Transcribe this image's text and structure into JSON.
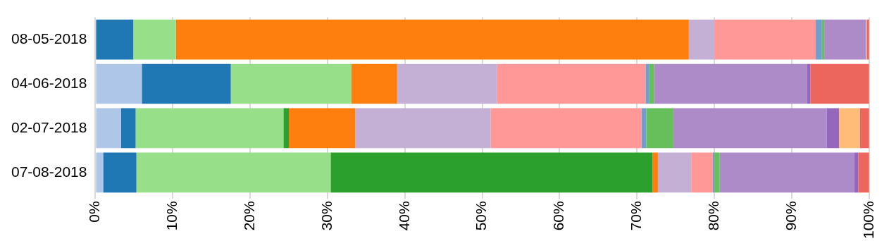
{
  "chart_data": {
    "type": "bar",
    "orientation": "horizontal",
    "stacked": true,
    "grid": "x",
    "legend": false,
    "categories": [
      "08-05-2018",
      "04-06-2018",
      "02-07-2018",
      "07-08-2018"
    ],
    "xlim": [
      0,
      100
    ],
    "xticks": [
      {
        "value": 0,
        "label": "0%"
      },
      {
        "value": 10,
        "label": "10%"
      },
      {
        "value": 20,
        "label": "20%"
      },
      {
        "value": 30,
        "label": "30%"
      },
      {
        "value": 40,
        "label": "40%"
      },
      {
        "value": 50,
        "label": "50%"
      },
      {
        "value": 60,
        "label": "60%"
      },
      {
        "value": 70,
        "label": "70%"
      },
      {
        "value": 80,
        "label": "80%"
      },
      {
        "value": 90,
        "label": "90%"
      },
      {
        "value": 100,
        "label": "100%"
      }
    ],
    "series": [
      {
        "color": "#aec7e8",
        "values": [
          0,
          6.0,
          3.3,
          1.0
        ]
      },
      {
        "color": "#1f77b4",
        "values": [
          4.9,
          11.5,
          1.9,
          4.3
        ]
      },
      {
        "color": "#98df8a",
        "values": [
          5.5,
          15.6,
          19.1,
          25.1
        ]
      },
      {
        "color": "#2ca02c",
        "values": [
          0,
          0,
          0.7,
          41.6
        ]
      },
      {
        "color": "#ff7f0e",
        "values": [
          66.3,
          5.9,
          8.6,
          0.7
        ]
      },
      {
        "color": "#c5b0d5",
        "values": [
          3.3,
          12.9,
          17.5,
          4.3
        ]
      },
      {
        "color": "#ff9896",
        "values": [
          13.1,
          19.2,
          19.5,
          2.8
        ]
      },
      {
        "color": "#729ece",
        "values": [
          0.8,
          0.5,
          0.6,
          0.2
        ]
      },
      {
        "color": "#67bf5c",
        "values": [
          0.3,
          0.6,
          3.5,
          0.7
        ]
      },
      {
        "color": "#ad8bc9",
        "values": [
          5.3,
          19.8,
          19.8,
          17.4
        ]
      },
      {
        "color": "#9467bd",
        "values": [
          0.1,
          0.4,
          1.6,
          0.5
        ]
      },
      {
        "color": "#ffbb78",
        "values": [
          0.1,
          0,
          2.7,
          0
        ]
      },
      {
        "color": "#ed665d",
        "values": [
          0.3,
          7.6,
          1.2,
          1.4
        ]
      }
    ]
  }
}
